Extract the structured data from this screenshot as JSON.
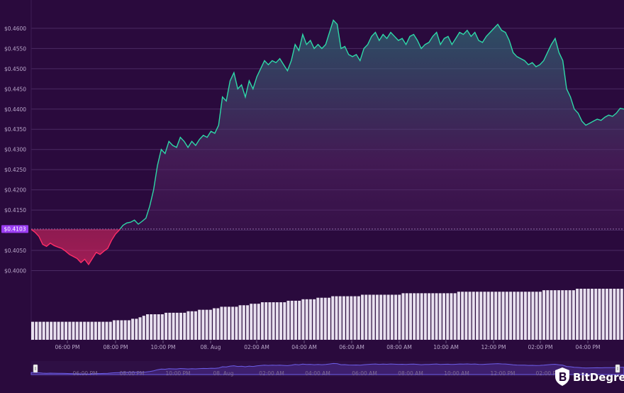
{
  "chart_data": {
    "type": "area",
    "series": [
      {
        "values": [
          0.4102,
          0.4095,
          0.4085,
          0.4065,
          0.406,
          0.4068,
          0.4062,
          0.4058,
          0.4055,
          0.4048,
          0.404,
          0.4035,
          0.403,
          0.402,
          0.4028,
          0.4015,
          0.403,
          0.4045,
          0.404,
          0.4048,
          0.4055,
          0.4075,
          0.409,
          0.41,
          0.4112,
          0.4118,
          0.412,
          0.4125,
          0.4115,
          0.4122,
          0.413,
          0.416,
          0.42,
          0.426,
          0.43,
          0.429,
          0.432,
          0.431,
          0.4305,
          0.433,
          0.432,
          0.4305,
          0.432,
          0.431,
          0.4325,
          0.4335,
          0.433,
          0.4345,
          0.434,
          0.436,
          0.443,
          0.442,
          0.447,
          0.449,
          0.445,
          0.446,
          0.443,
          0.447,
          0.445,
          0.448,
          0.45,
          0.452,
          0.451,
          0.452,
          0.4515,
          0.4525,
          0.451,
          0.4495,
          0.452,
          0.456,
          0.4545,
          0.4585,
          0.456,
          0.457,
          0.455,
          0.456,
          0.455,
          0.456,
          0.459,
          0.462,
          0.461,
          0.455,
          0.4555,
          0.4535,
          0.453,
          0.4535,
          0.452,
          0.455,
          0.456,
          0.458,
          0.459,
          0.457,
          0.4585,
          0.4575,
          0.459,
          0.458,
          0.457,
          0.4575,
          0.456,
          0.458,
          0.4585,
          0.457,
          0.455,
          0.456,
          0.4565,
          0.458,
          0.459,
          0.456,
          0.4575,
          0.458,
          0.456,
          0.4575,
          0.459,
          0.4585,
          0.4595,
          0.458,
          0.459,
          0.457,
          0.4565,
          0.458,
          0.459,
          0.46,
          0.461,
          0.4595,
          0.459,
          0.457,
          0.454,
          0.453,
          0.4525,
          0.452,
          0.451,
          0.4515,
          0.4505,
          0.451,
          0.452,
          0.454,
          0.456,
          0.4575,
          0.454,
          0.452,
          0.445,
          0.443,
          0.44,
          0.439,
          0.437,
          0.436,
          0.4365,
          0.437,
          0.4375,
          0.4372,
          0.438,
          0.4385,
          0.4382,
          0.439,
          0.4402,
          0.44
        ]
      }
    ],
    "ylim": [
      0.3985,
      0.4635
    ],
    "y_ticks": [
      "$0.4000",
      "$0.4050",
      "$0.4100",
      "$0.4150",
      "$0.4200",
      "$0.4250",
      "$0.4300",
      "$0.4350",
      "$0.4400",
      "$0.4450",
      "$0.4500",
      "$0.4550",
      "$0.4600"
    ],
    "x_ticks": [
      "06:00 PM",
      "08:00 PM",
      "10:00 PM",
      "08. Aug",
      "02:00 AM",
      "04:00 AM",
      "06:00 AM",
      "08:00 AM",
      "10:00 AM",
      "12:00 PM",
      "02:00 PM",
      "04:00 PM"
    ],
    "reference_price": 0.4103,
    "reference_label": "$0.4103",
    "volume": [
      12,
      12,
      12,
      12,
      12,
      12,
      12,
      12,
      12,
      12,
      12,
      12,
      12,
      12,
      12,
      12,
      12,
      12,
      12,
      12,
      12,
      12,
      13,
      13,
      13,
      13,
      13,
      14,
      14,
      15,
      16,
      17,
      17,
      17,
      17,
      17,
      18,
      18,
      18,
      18,
      18,
      18,
      19,
      19,
      19,
      20,
      20,
      20,
      20,
      21,
      21,
      22,
      22,
      22,
      22,
      22,
      23,
      23,
      23,
      24,
      24,
      24,
      25,
      25,
      25,
      25,
      25,
      25,
      25,
      26,
      26,
      26,
      26,
      27,
      27,
      27,
      27,
      28,
      28,
      28,
      28,
      29,
      29,
      29,
      29,
      29,
      29,
      29,
      29,
      30,
      30,
      30,
      30,
      30,
      30,
      30,
      30,
      30,
      30,
      30,
      31,
      31,
      31,
      31,
      31,
      31,
      31,
      31,
      31,
      31,
      31,
      31,
      31,
      31,
      31,
      32,
      32,
      32,
      32,
      32,
      32,
      32,
      32,
      32,
      32,
      32,
      32,
      32,
      32,
      32,
      32,
      32,
      32,
      32,
      32,
      32,
      32,
      32,
      33,
      33,
      33,
      33,
      33,
      33,
      33,
      33,
      33,
      34,
      34,
      34,
      34,
      34,
      34,
      34,
      34,
      34,
      34,
      34,
      34,
      34
    ],
    "colors": {
      "above": "#2ed8a8",
      "below": "#ff2d68",
      "background": "#2a0a3d",
      "reference_marker": "#9b3df2"
    }
  },
  "navigator": {
    "x_ticks": [
      "06:00 PM",
      "08:00 PM",
      "10:00 PM",
      "08. Aug",
      "02:00 AM",
      "04:00 AM",
      "06:00 AM",
      "08:00 AM",
      "10:00 AM",
      "12:00 PM",
      "02:00 PM"
    ],
    "left_handle_icon": "grip-handle-icon",
    "right_handle_icon": "grip-handle-icon"
  },
  "brand": {
    "name": "BitDegree",
    "logo_icon": "bitdegree-shield-icon"
  }
}
